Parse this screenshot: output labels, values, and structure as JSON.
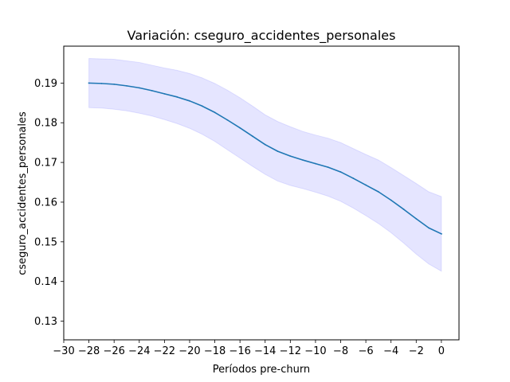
{
  "chart_data": {
    "type": "line",
    "title": "Variación: cseguro_accidentes_personales",
    "xlabel": "Períodos pre-churn",
    "ylabel": "cseguro_accidentes_personales",
    "xlim": [
      -30,
      1.4
    ],
    "ylim": [
      0.1253,
      0.1993
    ],
    "xticks": [
      -30,
      -28,
      -26,
      -24,
      -22,
      -20,
      -18,
      -16,
      -14,
      -12,
      -10,
      -8,
      -6,
      -4,
      -2,
      0
    ],
    "xtick_labels": [
      "−30",
      "−28",
      "−26",
      "−24",
      "−22",
      "−20",
      "−18",
      "−16",
      "−14",
      "−12",
      "−10",
      "−8",
      "−6",
      "−4",
      "−2",
      "0"
    ],
    "yticks": [
      0.13,
      0.14,
      0.15,
      0.16,
      0.17,
      0.18,
      0.19
    ],
    "ytick_labels": [
      "0.13",
      "0.14",
      "0.15",
      "0.16",
      "0.17",
      "0.18",
      "0.19"
    ],
    "grid": false,
    "legend": "none",
    "colors": {
      "line": "#1f77b4",
      "band": "#0000ff"
    },
    "series": [
      {
        "x": [
          -28,
          -27,
          -26,
          -25,
          -24,
          -23,
          -22,
          -21,
          -20,
          -19,
          -18,
          -17,
          -16,
          -15,
          -14,
          -13,
          -12,
          -11,
          -10,
          -9,
          -8,
          -7,
          -6,
          -5,
          -4,
          -3,
          -2,
          -1,
          0
        ],
        "y": [
          0.19,
          0.1899,
          0.1897,
          0.1893,
          0.1888,
          0.1881,
          0.1873,
          0.1865,
          0.1855,
          0.1842,
          0.1826,
          0.1807,
          0.1787,
          0.1766,
          0.1745,
          0.1728,
          0.1716,
          0.1706,
          0.1697,
          0.1688,
          0.1676,
          0.166,
          0.1643,
          0.1626,
          0.1605,
          0.1582,
          0.1558,
          0.1535,
          0.152
        ],
        "lower": [
          0.1838,
          0.1837,
          0.1834,
          0.183,
          0.1824,
          0.1817,
          0.1808,
          0.1798,
          0.1786,
          0.1771,
          0.1753,
          0.1732,
          0.1711,
          0.169,
          0.167,
          0.1653,
          0.1642,
          0.1634,
          0.1625,
          0.1615,
          0.1602,
          0.1585,
          0.1566,
          0.1546,
          0.1523,
          0.1497,
          0.1469,
          0.1444,
          0.1426
        ],
        "upper": [
          0.1962,
          0.1961,
          0.196,
          0.1956,
          0.1952,
          0.1945,
          0.1938,
          0.1932,
          0.1924,
          0.1913,
          0.1899,
          0.1882,
          0.1863,
          0.1842,
          0.182,
          0.1803,
          0.179,
          0.1778,
          0.1769,
          0.1761,
          0.175,
          0.1735,
          0.172,
          0.1706,
          0.1687,
          0.1667,
          0.1647,
          0.1626,
          0.1614
        ]
      }
    ]
  }
}
